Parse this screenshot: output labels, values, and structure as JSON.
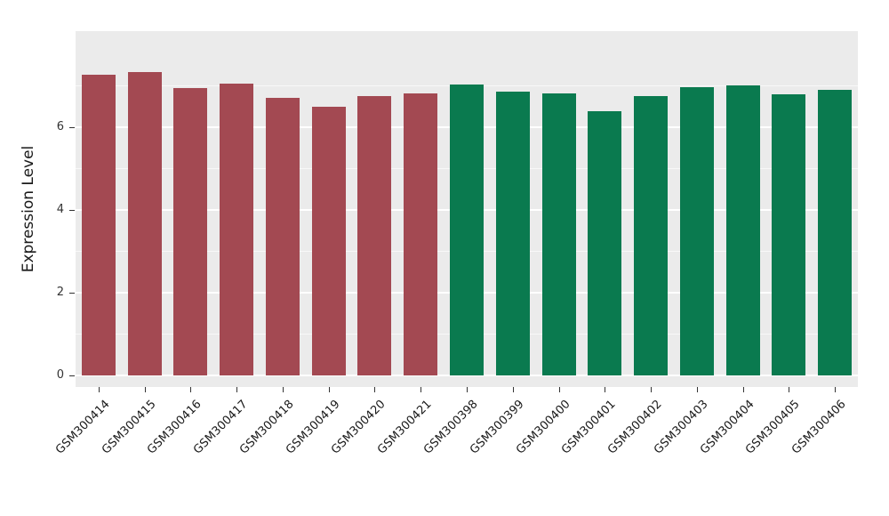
{
  "chart_data": {
    "type": "bar",
    "title": "",
    "xlabel": "",
    "ylabel": "Expression Level",
    "categories": [
      "GSM300414",
      "GSM300415",
      "GSM300416",
      "GSM300417",
      "GSM300418",
      "GSM300419",
      "GSM300420",
      "GSM300421",
      "GSM300398",
      "GSM300399",
      "GSM300400",
      "GSM300401",
      "GSM300402",
      "GSM300403",
      "GSM300404",
      "GSM300405",
      "GSM300406"
    ],
    "values": [
      7.27,
      7.33,
      6.95,
      7.06,
      6.72,
      6.5,
      6.76,
      6.82,
      7.03,
      6.86,
      6.82,
      6.38,
      6.76,
      6.97,
      7.01,
      6.8,
      6.9
    ],
    "bar_colors": [
      "#A34952",
      "#A34952",
      "#A34952",
      "#A34952",
      "#A34952",
      "#A34952",
      "#A34952",
      "#A34952",
      "#0A7A4F",
      "#0A7A4F",
      "#0A7A4F",
      "#0A7A4F",
      "#0A7A4F",
      "#0A7A4F",
      "#0A7A4F",
      "#0A7A4F",
      "#0A7A4F"
    ],
    "yticks": [
      0,
      2,
      4,
      6
    ],
    "minor_gridlines": [
      1,
      3,
      5,
      7
    ],
    "ylim": [
      0,
      8.3
    ],
    "grid": true,
    "legend": "none",
    "panel_background": "#EBEBEB",
    "grid_color": "#FFFFFF"
  }
}
